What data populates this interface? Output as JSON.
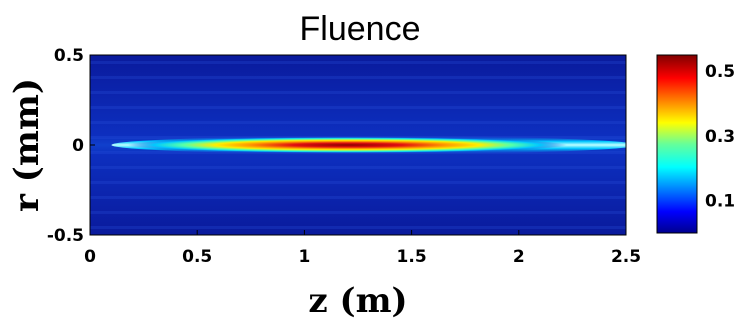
{
  "chart_data": {
    "type": "heatmap",
    "title": "Fluence",
    "xlabel": "z (m)",
    "ylabel": "r (mm)",
    "xlim": [
      0,
      2.5
    ],
    "ylim": [
      -0.5,
      0.5
    ],
    "x_ticks": [
      "0",
      "0.5",
      "1",
      "1.5",
      "2",
      "2.5"
    ],
    "y_ticks": [
      "0.5",
      "0",
      "-0.5"
    ],
    "colorbar": {
      "ticks": [
        "0.5",
        "0.3",
        "0.1"
      ],
      "tick_values": [
        0.5,
        0.3,
        0.1
      ],
      "range": [
        0,
        0.55
      ],
      "colormap": "jet"
    },
    "filament": {
      "center_r": 0,
      "z_start": 0.1,
      "z_end": 2.5,
      "peak_value": 0.55,
      "peak_z": 1.2
    }
  }
}
